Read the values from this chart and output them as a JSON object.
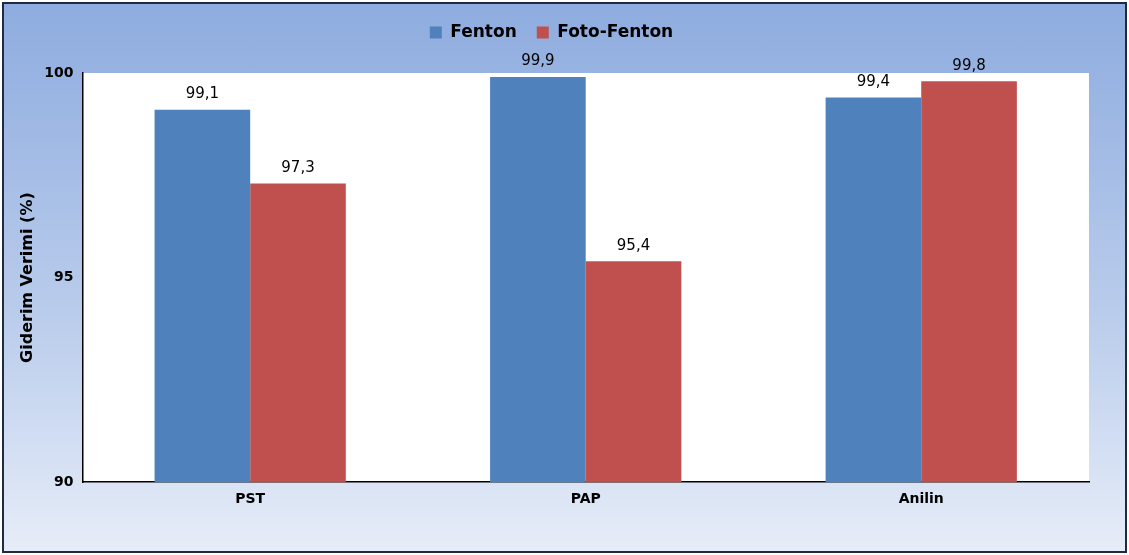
{
  "chart_data": {
    "type": "bar",
    "ylabel": "Giderim Verimi (%)",
    "categories": [
      "PST",
      "PAP",
      "Anilin"
    ],
    "series": [
      {
        "name": "Fenton",
        "color": "#4f81bd",
        "values": [
          99.1,
          99.9,
          99.4
        ],
        "value_labels": [
          "99,1",
          "99,9",
          "99,4"
        ]
      },
      {
        "name": "Foto-Fenton",
        "color": "#c0504d",
        "values": [
          97.3,
          95.4,
          99.8
        ],
        "value_labels": [
          "97,3",
          "95,4",
          "99,8"
        ]
      }
    ],
    "ylim": [
      90,
      100
    ],
    "yticks": [
      90,
      95,
      100
    ],
    "grid": false,
    "legend": "top"
  }
}
